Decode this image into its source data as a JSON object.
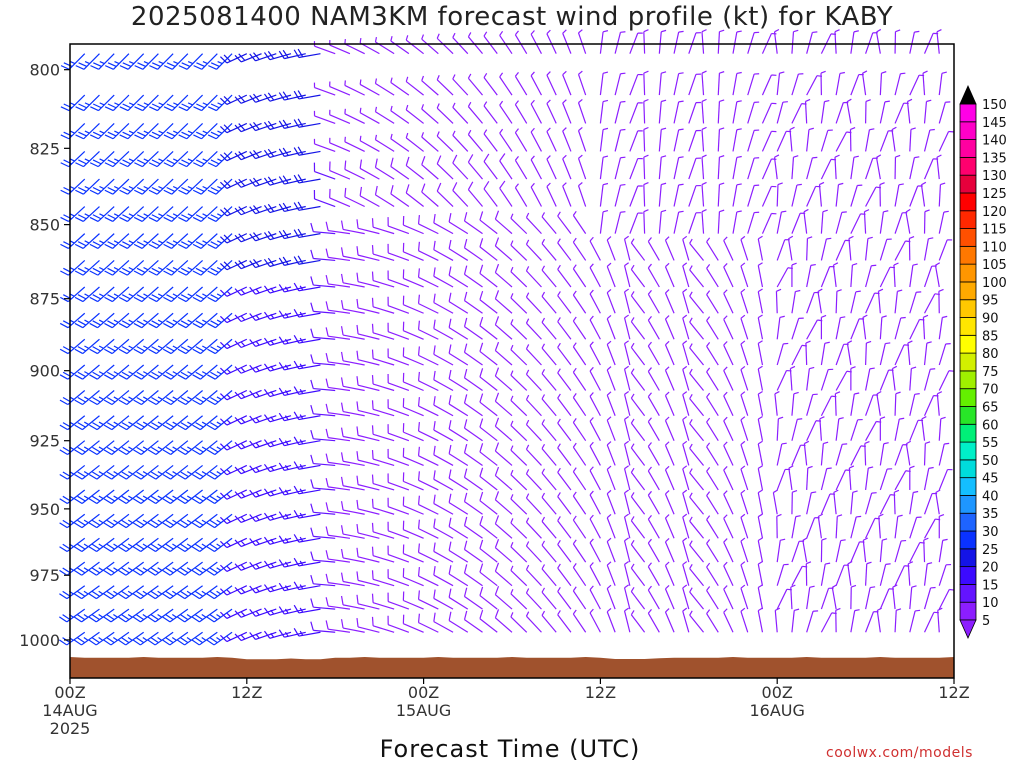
{
  "title": "2025081400 NAM3KM forecast wind profile (kt) for KABY",
  "credit": "coolwx.com/models",
  "chart_data": {
    "type": "wind-barb time-height",
    "title": "2025081400 NAM3KM forecast wind profile (kt) for KABY",
    "xlabel": "Forecast Time (UTC)",
    "ylabel": "",
    "y_ticks": [
      800,
      825,
      850,
      875,
      900,
      925,
      950,
      975,
      1000
    ],
    "ylim": [
      1015,
      792
    ],
    "y_scale": "log",
    "x_ticks": [
      {
        "hour": 0,
        "line1": "00Z",
        "line2": "14AUG",
        "line3": "2025"
      },
      {
        "hour": 12,
        "line1": "12Z",
        "line2": "",
        "line3": ""
      },
      {
        "hour": 24,
        "line1": "00Z",
        "line2": "15AUG",
        "line3": ""
      },
      {
        "hour": 36,
        "line1": "12Z",
        "line2": "",
        "line3": ""
      },
      {
        "hour": 48,
        "line1": "00Z",
        "line2": "16AUG",
        "line3": ""
      },
      {
        "hour": 60,
        "line1": "12Z",
        "line2": "",
        "line3": ""
      }
    ],
    "xlim": [
      0,
      60
    ],
    "levels": [
      795,
      808,
      817,
      826,
      835,
      844,
      853,
      862,
      871,
      880,
      889,
      898,
      907,
      916,
      925,
      934,
      943,
      952,
      961,
      970,
      979,
      988,
      997,
      1006
    ],
    "surface_pressure": "about 1005 mb (brown ground fill)",
    "wind_segments": [
      {
        "hours": "0-12",
        "speed_kt": "20-30",
        "direction": "southwest",
        "color": "blue"
      },
      {
        "hours": "12-18",
        "speed_kt": "15-25",
        "direction": "west-southwest",
        "color": "blue"
      },
      {
        "hours": "18-36",
        "speed_kt": "5-15",
        "direction": "west to northwest",
        "color": "violet"
      },
      {
        "hours": "36-60",
        "speed_kt": "5-10",
        "direction": "variable, northerly aloft",
        "color": "violet"
      }
    ],
    "colorbar": {
      "values": [
        5,
        10,
        15,
        20,
        25,
        30,
        35,
        40,
        45,
        50,
        55,
        60,
        65,
        70,
        75,
        80,
        85,
        90,
        95,
        100,
        105,
        110,
        115,
        120,
        125,
        130,
        135,
        140,
        145,
        150
      ],
      "colors": [
        "#8c1eff",
        "#6414ff",
        "#3c0aff",
        "#1414e6",
        "#0a32ff",
        "#1e64ff",
        "#1e96ff",
        "#14beff",
        "#00dcdc",
        "#00f0c8",
        "#00f078",
        "#28e628",
        "#64f000",
        "#a0f000",
        "#d2f000",
        "#ffff00",
        "#ffe600",
        "#ffc800",
        "#ffaa00",
        "#ff9600",
        "#ff7800",
        "#ff5000",
        "#ff2800",
        "#ff0000",
        "#e6003c",
        "#ff006e",
        "#ff00a0",
        "#ff00c8",
        "#ff00e6",
        "#000000"
      ]
    },
    "legend": "right colorbar (kt)",
    "grid": false
  }
}
